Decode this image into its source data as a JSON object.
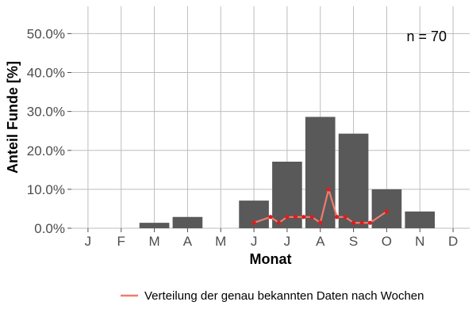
{
  "chart_data": {
    "type": "bar",
    "categories": [
      "J",
      "F",
      "M",
      "A",
      "M",
      "J",
      "J",
      "A",
      "S",
      "O",
      "N",
      "D"
    ],
    "values": [
      0,
      0,
      1.4,
      2.9,
      0,
      7.1,
      17.1,
      28.6,
      24.3,
      10.0,
      4.3,
      0
    ],
    "bar_color": "#595959",
    "overlay_line": {
      "name": "Verteilung der genau bekannten Daten nach Wochen",
      "color": "#f07b6f",
      "marker_color": "#e41a1c",
      "x_month": [
        6.0,
        6.5,
        6.75,
        7.0,
        7.25,
        7.5,
        7.75,
        8.0,
        8.25,
        8.5,
        8.75,
        9.0,
        9.25,
        9.5,
        10.0
      ],
      "values": [
        1.4,
        2.9,
        1.4,
        2.9,
        2.9,
        2.9,
        2.9,
        1.4,
        10.0,
        2.9,
        2.9,
        1.4,
        1.4,
        1.4,
        4.3
      ]
    },
    "yticks": [
      0,
      10,
      20,
      30,
      40,
      50
    ],
    "ytick_labels": [
      "0.0%",
      "10.0%",
      "20.0%",
      "30.0%",
      "40.0%",
      "50.0%"
    ],
    "ylim": [
      0,
      57
    ],
    "xlabel": "Monat",
    "ylabel": "Anteil Funde [%]",
    "annotation": "n = 70",
    "grid": true,
    "legend_position": "bottom-right"
  }
}
